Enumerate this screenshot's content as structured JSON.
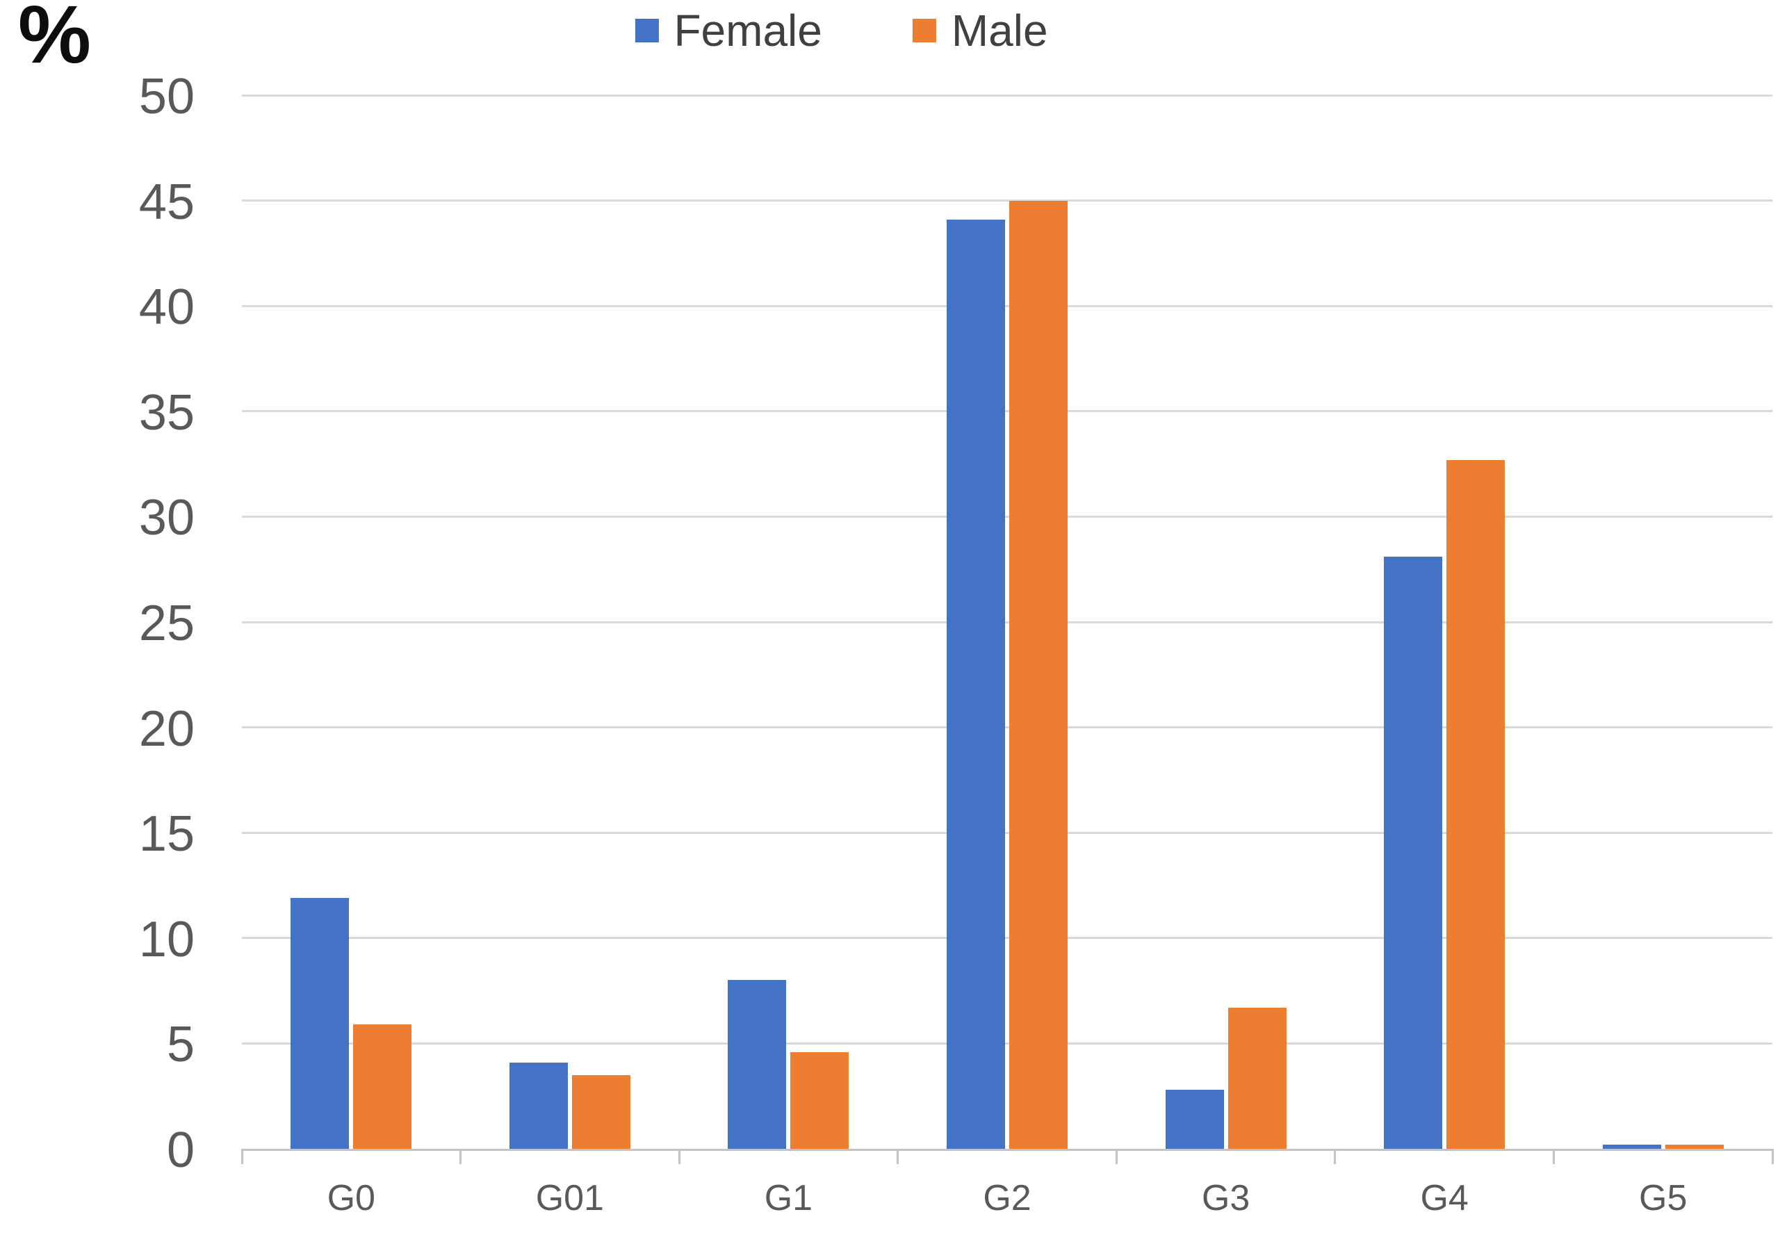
{
  "chart_data": {
    "type": "bar",
    "ylabel": "%",
    "categories": [
      "G0",
      "G01",
      "G1",
      "G2",
      "G3",
      "G4",
      "G5"
    ],
    "series": [
      {
        "name": "Female",
        "color": "#4472C4",
        "values": [
          11.9,
          4.1,
          8.0,
          44.1,
          2.8,
          28.1,
          0.2
        ]
      },
      {
        "name": "Male",
        "color": "#ED7D31",
        "values": [
          5.9,
          3.5,
          4.6,
          45.0,
          6.7,
          32.7,
          0.2
        ]
      }
    ],
    "ylim": [
      0,
      50
    ],
    "yticks": [
      0,
      5,
      10,
      15,
      20,
      25,
      30,
      35,
      40,
      45,
      50
    ],
    "grid": true,
    "legend_position": "top",
    "colors": {
      "gridline": "#D9D9D9",
      "axis_line": "#C3C3C3",
      "tick_label": "#595959",
      "legend_text": "#404040",
      "unit_label": "#0D0D0D"
    }
  }
}
